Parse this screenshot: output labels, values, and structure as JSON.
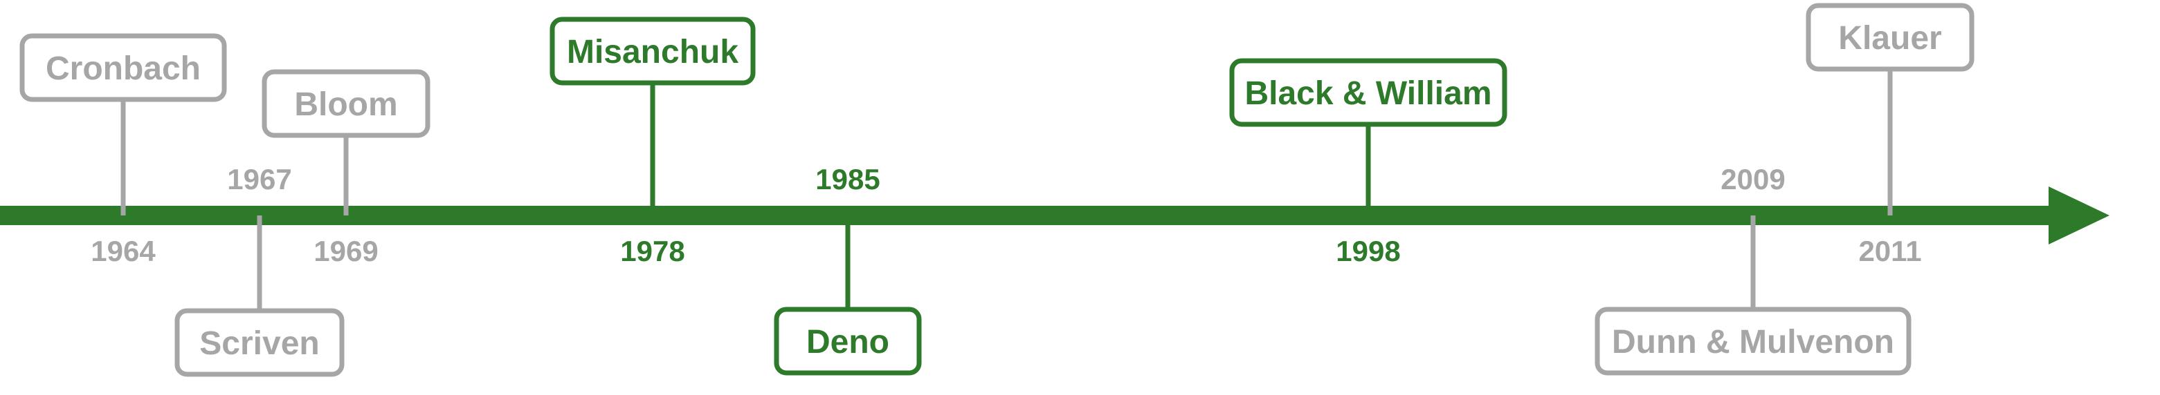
{
  "colors": {
    "highlight": "#2e7a2b",
    "muted": "#a6a6a6",
    "axis": "#2e7a2b",
    "background": "#ffffff"
  },
  "timeline": {
    "events": [
      {
        "year": "1964",
        "name": "Cronbach",
        "highlight": false,
        "side": "above"
      },
      {
        "year": "1967",
        "name": "Scriven",
        "highlight": false,
        "side": "below"
      },
      {
        "year": "1969",
        "name": "Bloom",
        "highlight": false,
        "side": "above"
      },
      {
        "year": "1978",
        "name": "Misanchuk",
        "highlight": true,
        "side": "above"
      },
      {
        "year": "1985",
        "name": "Deno",
        "highlight": true,
        "side": "below"
      },
      {
        "year": "1998",
        "name": "Black & William",
        "highlight": true,
        "side": "above"
      },
      {
        "year": "2009",
        "name": "Dunn & Mulvenon",
        "highlight": false,
        "side": "below"
      },
      {
        "year": "2011",
        "name": "Klauer",
        "highlight": false,
        "side": "above"
      }
    ]
  }
}
